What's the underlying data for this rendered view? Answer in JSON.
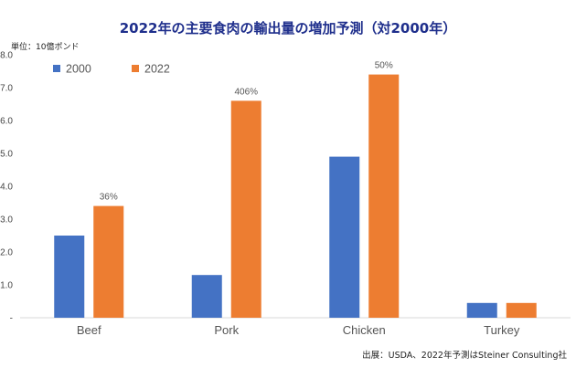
{
  "chart_data": {
    "type": "bar",
    "title": "2022年の主要食肉の輸出量の増加予測（対2000年）",
    "unit_label": "単位：10億ポンド",
    "source": "出展：USDA、2022年予測はSteiner Consulting社",
    "categories": [
      "Beef",
      "Pork",
      "Chicken",
      "Turkey"
    ],
    "series": [
      {
        "name": "2000",
        "color": "#4472c4",
        "values": [
          2.5,
          1.3,
          4.9,
          0.45
        ]
      },
      {
        "name": "2022",
        "color": "#ed7d31",
        "values": [
          3.4,
          6.6,
          7.4,
          0.45
        ]
      }
    ],
    "annotations": [
      "36%",
      "406%",
      "50%",
      ""
    ],
    "yticks": [
      "8.0",
      "7.0",
      "6.0",
      "5.0",
      "4.0",
      "3.0",
      "2.0",
      "1.0",
      "-"
    ],
    "ylim": [
      0,
      8
    ],
    "grid": false,
    "legend_position": "top-left"
  }
}
